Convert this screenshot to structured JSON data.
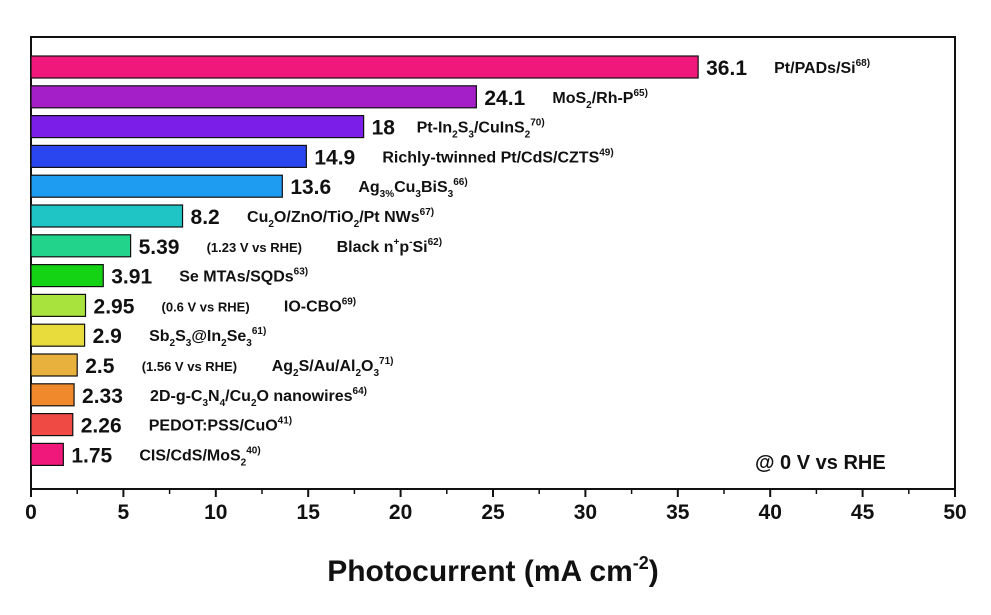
{
  "chart_data": {
    "type": "bar",
    "orientation": "horizontal",
    "xlabel": "Photocurrent (mA cm",
    "xlabel_sup": "-2",
    "xlabel_close": ")",
    "xlim": [
      0,
      50
    ],
    "xticks": [
      "0",
      "5",
      "10",
      "15",
      "20",
      "25",
      "30",
      "35",
      "40",
      "45",
      "50"
    ],
    "note": "@ 0 V vs RHE",
    "bars": [
      {
        "value": 36.1,
        "value_label": "36.1",
        "color": "#f0187a",
        "label": [
          {
            "t": "Pt/PADs/Si"
          },
          {
            "t": "68)",
            "s": "sup"
          }
        ],
        "condition": ""
      },
      {
        "value": 24.1,
        "value_label": "24.1",
        "color": "#a51fc8",
        "label": [
          {
            "t": "MoS"
          },
          {
            "t": "2",
            "s": "sub"
          },
          {
            "t": "/Rh-P"
          },
          {
            "t": "65)",
            "s": "sup"
          }
        ],
        "condition": ""
      },
      {
        "value": 18,
        "value_label": "18",
        "color": "#7a1ee8",
        "label": [
          {
            "t": "Pt-In"
          },
          {
            "t": "2",
            "s": "sub"
          },
          {
            "t": "S"
          },
          {
            "t": "3",
            "s": "sub"
          },
          {
            "t": "/CuInS"
          },
          {
            "t": "2",
            "s": "sub"
          },
          {
            "t": "70)",
            "s": "sup"
          }
        ],
        "condition": ""
      },
      {
        "value": 14.9,
        "value_label": "14.9",
        "color": "#2a46ee",
        "label": [
          {
            "t": "Richly-twinned Pt/CdS/CZTS"
          },
          {
            "t": "49)",
            "s": "sup"
          }
        ],
        "condition": ""
      },
      {
        "value": 13.6,
        "value_label": "13.6",
        "color": "#1d9cf2",
        "label": [
          {
            "t": "Ag"
          },
          {
            "t": "3%",
            "s": "sub"
          },
          {
            "t": "Cu"
          },
          {
            "t": "3",
            "s": "sub"
          },
          {
            "t": "BiS"
          },
          {
            "t": "3",
            "s": "sub"
          },
          {
            "t": "66)",
            "s": "sup"
          }
        ],
        "condition": ""
      },
      {
        "value": 8.2,
        "value_label": "8.2",
        "color": "#1fc4c4",
        "label": [
          {
            "t": "Cu"
          },
          {
            "t": "2",
            "s": "sub"
          },
          {
            "t": "O/ZnO/TiO"
          },
          {
            "t": "2",
            "s": "sub"
          },
          {
            "t": "/Pt NWs"
          },
          {
            "t": "67)",
            "s": "sup"
          }
        ],
        "condition": ""
      },
      {
        "value": 5.39,
        "value_label": "5.39",
        "color": "#22d38c",
        "label": [
          {
            "t": "Black n"
          },
          {
            "t": "+",
            "s": "sup"
          },
          {
            "t": "p"
          },
          {
            "t": "-",
            "s": "sup"
          },
          {
            "t": "Si"
          },
          {
            "t": "62)",
            "s": "sup"
          }
        ],
        "condition": "(1.23 V vs RHE)"
      },
      {
        "value": 3.91,
        "value_label": "3.91",
        "color": "#14d214",
        "label": [
          {
            "t": "Se MTAs/SQDs"
          },
          {
            "t": "63)",
            "s": "sup"
          }
        ],
        "condition": ""
      },
      {
        "value": 2.95,
        "value_label": "2.95",
        "color": "#a8e23c",
        "label": [
          {
            "t": "IO-CBO"
          },
          {
            "t": "69)",
            "s": "sup"
          }
        ],
        "condition": "(0.6 V vs RHE)"
      },
      {
        "value": 2.9,
        "value_label": "2.9",
        "color": "#e8dc3c",
        "label": [
          {
            "t": "Sb"
          },
          {
            "t": "2",
            "s": "sub"
          },
          {
            "t": "S"
          },
          {
            "t": "3",
            "s": "sub"
          },
          {
            "t": "@In"
          },
          {
            "t": "2",
            "s": "sub"
          },
          {
            "t": "Se"
          },
          {
            "t": "3",
            "s": "sub"
          },
          {
            "t": "61)",
            "s": "sup"
          }
        ],
        "condition": ""
      },
      {
        "value": 2.5,
        "value_label": "2.5",
        "color": "#e8b03c",
        "label": [
          {
            "t": "Ag"
          },
          {
            "t": "2",
            "s": "sub"
          },
          {
            "t": "S/Au/Al"
          },
          {
            "t": "2",
            "s": "sub"
          },
          {
            "t": "O"
          },
          {
            "t": "3",
            "s": "sub"
          },
          {
            "t": "71)",
            "s": "sup"
          }
        ],
        "condition": "(1.56 V vs RHE)"
      },
      {
        "value": 2.33,
        "value_label": "2.33",
        "color": "#f0882c",
        "label": [
          {
            "t": "2D-g-C"
          },
          {
            "t": "3",
            "s": "sub"
          },
          {
            "t": "N"
          },
          {
            "t": "4",
            "s": "sub"
          },
          {
            "t": "/Cu"
          },
          {
            "t": "2",
            "s": "sub"
          },
          {
            "t": "O nanowires"
          },
          {
            "t": "64)",
            "s": "sup"
          }
        ],
        "condition": ""
      },
      {
        "value": 2.26,
        "value_label": "2.26",
        "color": "#f04a44",
        "label": [
          {
            "t": "PEDOT:PSS/CuO"
          },
          {
            "t": "41)",
            "s": "sup"
          }
        ],
        "condition": ""
      },
      {
        "value": 1.75,
        "value_label": "1.75",
        "color": "#f0187a",
        "label": [
          {
            "t": "CIS/CdS/MoS"
          },
          {
            "t": "2",
            "s": "sub"
          },
          {
            "t": "40)",
            "s": "sup"
          }
        ],
        "condition": ""
      }
    ]
  }
}
